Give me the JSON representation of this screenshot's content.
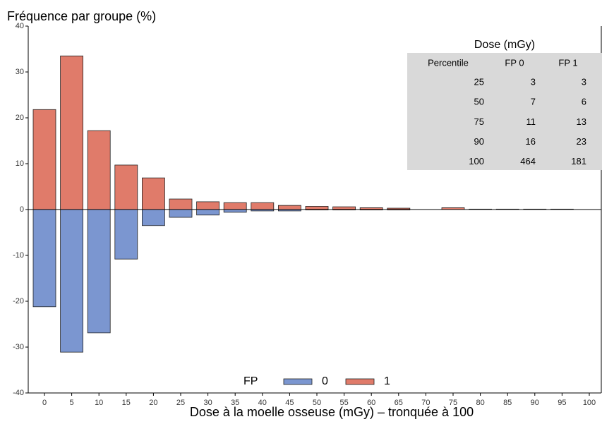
{
  "chart_data": {
    "type": "bar",
    "ylabel": "Fréquence par groupe (%)",
    "xlabel": "Dose à la moelle osseuse (mGy) – tronquée à 100",
    "categories": [
      "0",
      "5",
      "10",
      "15",
      "20",
      "25",
      "30",
      "35",
      "40",
      "45",
      "50",
      "55",
      "60",
      "65",
      "70",
      "75",
      "80",
      "85",
      "90",
      "95",
      "100"
    ],
    "series": [
      {
        "name": "0",
        "color": "#7b96d0",
        "values": [
          -21.2,
          -31.1,
          -26.9,
          -10.8,
          -3.5,
          -1.7,
          -1.2,
          -0.6,
          -0.3,
          -0.3,
          -0.1,
          -0.1,
          -0.1,
          -0.1,
          0,
          0,
          0,
          0,
          0,
          0,
          null
        ]
      },
      {
        "name": "1",
        "color": "#e07b6a",
        "values": [
          21.8,
          33.5,
          17.2,
          9.7,
          6.9,
          2.3,
          1.7,
          1.5,
          1.5,
          0.9,
          0.7,
          0.6,
          0.4,
          0.3,
          0,
          0.4,
          0.1,
          0.1,
          0.1,
          0.1,
          null
        ]
      }
    ],
    "legend_title": "FP",
    "ylim": [
      -40,
      40
    ],
    "yticks": [
      -40,
      -30,
      -20,
      -10,
      0,
      10,
      20,
      30,
      40
    ],
    "table": {
      "title": "Dose (mGy)",
      "columns": [
        "Percentile",
        "FP 0",
        "FP 1"
      ],
      "rows": [
        [
          "25",
          "3",
          "3"
        ],
        [
          "50",
          "7",
          "6"
        ],
        [
          "75",
          "11",
          "13"
        ],
        [
          "90",
          "16",
          "23"
        ],
        [
          "100",
          "464",
          "181"
        ]
      ]
    }
  }
}
